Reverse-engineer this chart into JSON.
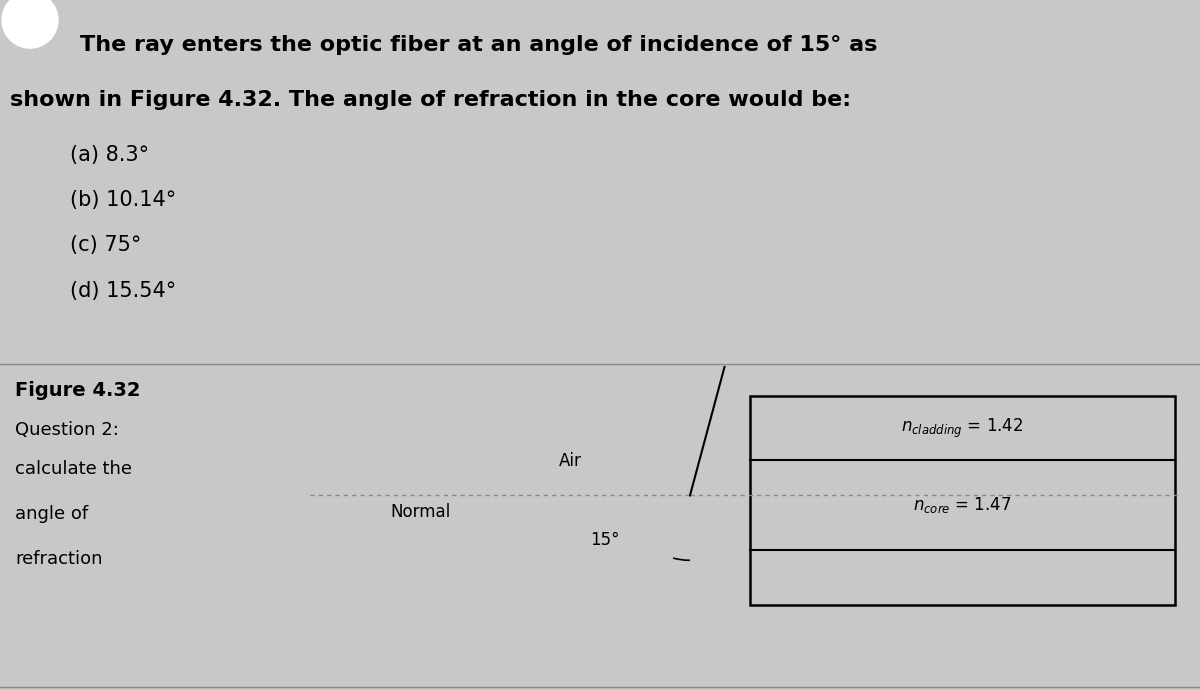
{
  "title_line1": "The ray enters the optic fiber at an angle of incidence of 15° as",
  "title_line2": "shown in Figure 4.32. The angle of refraction in the core would be:",
  "options": [
    "(a) 8.3°",
    "(b) 10.14°",
    "(c) 75°",
    "(d) 15.54°"
  ],
  "figure_label": "Figure 4.32",
  "question2_label": "Question 2:",
  "question2_text": [
    "calculate the",
    "angle of",
    "refraction"
  ],
  "air_label": "Air",
  "normal_label": "Normal",
  "angle_label": "15°",
  "top_bg": "#f0f0f0",
  "bottom_bg": "#c8c8c8",
  "text_color": "#000000",
  "title_fontsize": 16,
  "option_fontsize": 15,
  "diagram_fontsize": 12,
  "label_fontsize": 13
}
